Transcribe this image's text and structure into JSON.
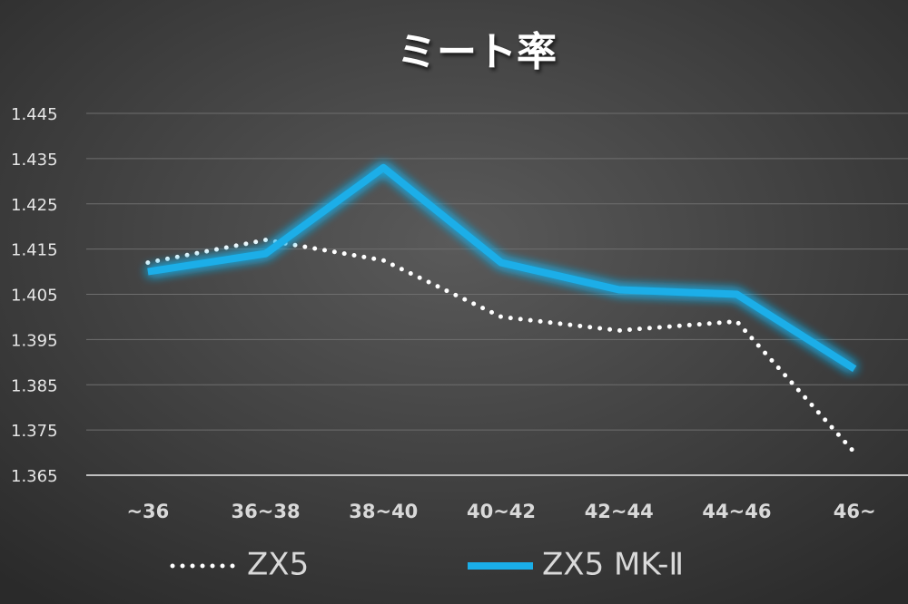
{
  "chart_data": {
    "type": "line",
    "title": "ミート率",
    "categories": [
      "~36",
      "36~38",
      "38~40",
      "40~42",
      "42~44",
      "44~46",
      "46~"
    ],
    "series": [
      {
        "name": "ZX5",
        "color": "#ffffff",
        "style": "dotted",
        "values": [
          1.412,
          1.417,
          1.4125,
          1.4,
          1.397,
          1.399,
          1.37
        ]
      },
      {
        "name": "ZX5 MK-Ⅱ",
        "color": "#1aaee8",
        "style": "solid",
        "values": [
          1.41,
          1.414,
          1.433,
          1.412,
          1.406,
          1.405,
          1.3885
        ]
      }
    ],
    "ylim": [
      1.365,
      1.445
    ],
    "yticks": [
      1.365,
      1.375,
      1.385,
      1.395,
      1.405,
      1.415,
      1.425,
      1.435,
      1.445
    ],
    "grid": true,
    "legend": "bottom"
  }
}
